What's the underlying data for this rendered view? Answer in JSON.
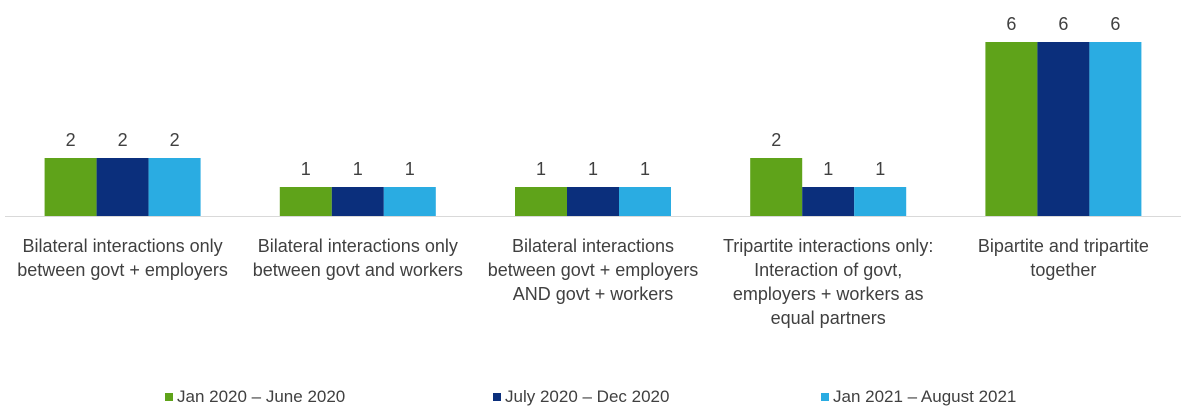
{
  "chart_data": {
    "type": "bar",
    "categories": [
      "Bilateral interactions only between govt + employers",
      "Bilateral interactions only between govt and workers",
      "Bilateral interactions between govt + employers AND govt + workers",
      "Tripartite interactions only: Interaction of govt, employers + workers as equal partners",
      "Bipartite and tripartite together"
    ],
    "series": [
      {
        "name": "Jan 2020 – June 2020",
        "color": "#5fa31a",
        "values": [
          2,
          1,
          1,
          2,
          6
        ]
      },
      {
        "name": "July 2020 – Dec 2020",
        "color": "#0b2f7c",
        "values": [
          2,
          1,
          1,
          1,
          6
        ]
      },
      {
        "name": "Jan 2021 – August 2021",
        "color": "#2aace2",
        "values": [
          2,
          1,
          1,
          1,
          6
        ]
      }
    ],
    "legend": "bottom"
  }
}
